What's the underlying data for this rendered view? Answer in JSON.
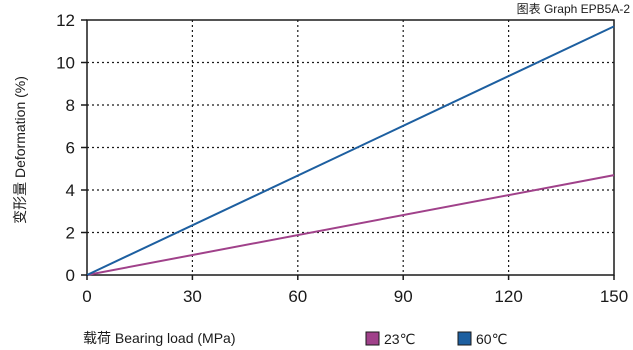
{
  "chart_data": {
    "type": "line",
    "title": "图表 Graph EPB5A-2",
    "xlabel": "载荷 Bearing load (MPa)",
    "ylabel": "变形量 Deformation (%)",
    "xlim": [
      0,
      150
    ],
    "ylim": [
      0,
      12
    ],
    "xticks": [
      "0",
      "30",
      "60",
      "90",
      "120",
      "150"
    ],
    "yticks": [
      "0",
      "2",
      "4",
      "6",
      "8",
      "10",
      "12"
    ],
    "grid": true,
    "legend_position": "bottom-right",
    "series": [
      {
        "name": "23℃",
        "color": "#a0418a",
        "x": [
          0,
          150
        ],
        "y": [
          0,
          4.7
        ]
      },
      {
        "name": "60℃",
        "color": "#1d5fa0",
        "x": [
          0,
          150
        ],
        "y": [
          0,
          11.7
        ]
      }
    ]
  }
}
